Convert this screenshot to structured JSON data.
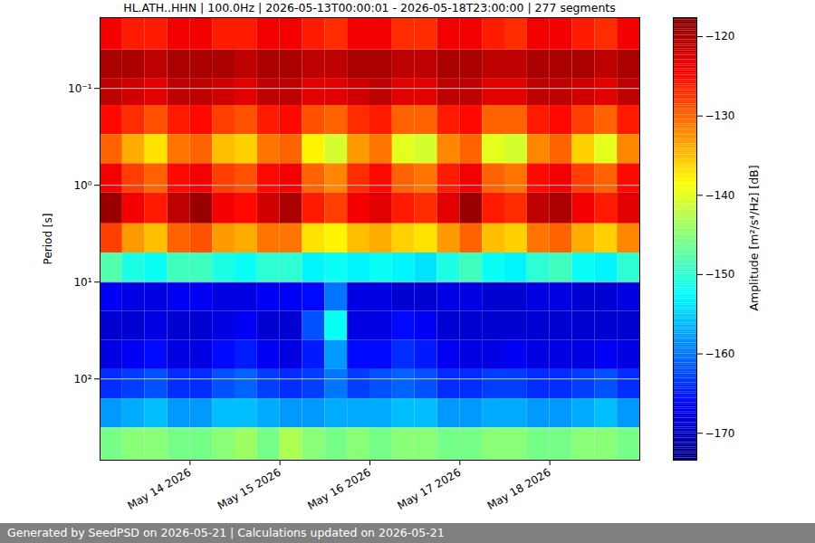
{
  "chart_data": {
    "type": "heatmap",
    "title": "HL.ATH..HHN | 100.0Hz | 2026-05-13T00:00:01 - 2026-05-18T23:00:00 | 277 segments",
    "footer": "Generated by SeedPSD on 2026-05-21 | Calculations updated on 2026-05-21",
    "y_label": "Period [s]",
    "log": "y",
    "grid": true,
    "x": [
      "2026-05-13T00:00",
      "2026-05-13T06:00",
      "2026-05-13T12:00",
      "2026-05-13T18:00",
      "2026-05-14T00:00",
      "2026-05-14T06:00",
      "2026-05-14T12:00",
      "2026-05-14T18:00",
      "2026-05-15T00:00",
      "2026-05-15T06:00",
      "2026-05-15T12:00",
      "2026-05-15T18:00",
      "2026-05-16T00:00",
      "2026-05-16T06:00",
      "2026-05-16T12:00",
      "2026-05-16T18:00",
      "2026-05-17T00:00",
      "2026-05-17T06:00",
      "2026-05-17T12:00",
      "2026-05-17T18:00",
      "2026-05-18T00:00",
      "2026-05-18T06:00",
      "2026-05-18T12:00",
      "2026-05-18T18:00"
    ],
    "xlim": [
      "2026-05-13T00:00",
      "2026-05-19T00:00"
    ],
    "xticks": [
      {
        "value": "2026-05-14T00:00",
        "label": "May 14 2026"
      },
      {
        "value": "2026-05-15T00:00",
        "label": "May 15 2026"
      },
      {
        "value": "2026-05-16T00:00",
        "label": "May 16 2026"
      },
      {
        "value": "2026-05-17T00:00",
        "label": "May 17 2026"
      },
      {
        "value": "2026-05-18T00:00",
        "label": "May 18 2026"
      }
    ],
    "y_edges": [
      0.0186,
      0.04,
      0.08,
      0.15,
      0.3,
      0.6,
      1.2,
      2.5,
      5,
      10,
      20,
      40,
      80,
      160,
      320,
      690
    ],
    "ylim": [
      0.0186,
      690
    ],
    "yticks": [
      {
        "value": 0.1,
        "label": "10⁻¹"
      },
      {
        "value": 1,
        "label": "10⁰"
      },
      {
        "value": 10,
        "label": "10¹"
      },
      {
        "value": 100,
        "label": "10²"
      }
    ],
    "values": [
      [
        -124,
        -126,
        -126,
        -124,
        -124,
        -126,
        -126,
        -124,
        -124,
        -126,
        -127,
        -124,
        -124,
        -127,
        -127,
        -124,
        -124,
        -126,
        -127,
        -124,
        -124,
        -126,
        -127,
        -124
      ],
      [
        -120,
        -120,
        -121,
        -120,
        -120,
        -120,
        -121,
        -120,
        -120,
        -121,
        -121,
        -120,
        -120,
        -121,
        -121,
        -120,
        -120,
        -121,
        -121,
        -120,
        -120,
        -120,
        -121,
        -120
      ],
      [
        -121,
        -122,
        -123,
        -121,
        -121,
        -122,
        -123,
        -121,
        -121,
        -123,
        -123,
        -122,
        -121,
        -123,
        -123,
        -121,
        -121,
        -123,
        -123,
        -121,
        -121,
        -122,
        -123,
        -121
      ],
      [
        -125,
        -127,
        -129,
        -126,
        -125,
        -128,
        -129,
        -126,
        -125,
        -129,
        -130,
        -127,
        -126,
        -130,
        -130,
        -126,
        -125,
        -130,
        -130,
        -126,
        -125,
        -128,
        -130,
        -126
      ],
      [
        -130,
        -134,
        -137,
        -131,
        -130,
        -135,
        -136,
        -131,
        -130,
        -138,
        -141,
        -133,
        -131,
        -140,
        -141,
        -132,
        -130,
        -140,
        -141,
        -132,
        -130,
        -136,
        -140,
        -132
      ],
      [
        -124,
        -128,
        -130,
        -125,
        -124,
        -128,
        -129,
        -125,
        -124,
        -130,
        -132,
        -127,
        -125,
        -130,
        -131,
        -126,
        -124,
        -130,
        -131,
        -125,
        -124,
        -128,
        -130,
        -125
      ],
      [
        -119,
        -124,
        -126,
        -121,
        -119,
        -124,
        -125,
        -122,
        -120,
        -126,
        -128,
        -124,
        -123,
        -126,
        -127,
        -123,
        -119,
        -126,
        -127,
        -121,
        -120,
        -124,
        -126,
        -123
      ],
      [
        -128,
        -133,
        -135,
        -130,
        -129,
        -133,
        -134,
        -131,
        -131,
        -137,
        -138,
        -135,
        -134,
        -136,
        -137,
        -133,
        -130,
        -135,
        -136,
        -131,
        -130,
        -134,
        -136,
        -132
      ],
      [
        -148,
        -151,
        -152,
        -149,
        -149,
        -151,
        -152,
        -150,
        -150,
        -153,
        -152,
        -153,
        -152,
        -153,
        -154,
        -151,
        -149,
        -152,
        -153,
        -150,
        -149,
        -152,
        -153,
        -150
      ],
      [
        -167,
        -168,
        -168,
        -167,
        -167,
        -168,
        -168,
        -167,
        -167,
        -166,
        -160,
        -168,
        -168,
        -169,
        -169,
        -168,
        -168,
        -169,
        -169,
        -168,
        -168,
        -169,
        -169,
        -168
      ],
      [
        -169,
        -169,
        -168,
        -169,
        -169,
        -168,
        -167,
        -169,
        -169,
        -162,
        -152,
        -168,
        -168,
        -166,
        -167,
        -169,
        -169,
        -169,
        -169,
        -169,
        -169,
        -169,
        -169,
        -169
      ],
      [
        -168,
        -167,
        -166,
        -168,
        -168,
        -166,
        -165,
        -167,
        -168,
        -165,
        -158,
        -166,
        -166,
        -164,
        -165,
        -167,
        -168,
        -168,
        -167,
        -168,
        -168,
        -168,
        -167,
        -168
      ],
      [
        -164,
        -163,
        -162,
        -164,
        -164,
        -162,
        -161,
        -163,
        -164,
        -163,
        -160,
        -163,
        -162,
        -161,
        -162,
        -164,
        -164,
        -163,
        -163,
        -164,
        -164,
        -163,
        -162,
        -164
      ],
      [
        -158,
        -157,
        -156,
        -158,
        -158,
        -156,
        -156,
        -157,
        -158,
        -158,
        -157,
        -157,
        -157,
        -156,
        -156,
        -158,
        -158,
        -157,
        -157,
        -158,
        -158,
        -157,
        -156,
        -158
      ],
      [
        -146,
        -145,
        -145,
        -146,
        -146,
        -145,
        -144,
        -146,
        -143,
        -145,
        -146,
        -145,
        -146,
        -145,
        -145,
        -146,
        -146,
        -145,
        -145,
        -146,
        -146,
        -145,
        -145,
        -146
      ]
    ],
    "colorbar": {
      "label": "Amplitude [m²/s⁴/Hz] [dB]",
      "lim": [
        -173.4,
        -117.6
      ],
      "ticks": [
        -120,
        -130,
        -140,
        -150,
        -160,
        -170
      ]
    }
  }
}
